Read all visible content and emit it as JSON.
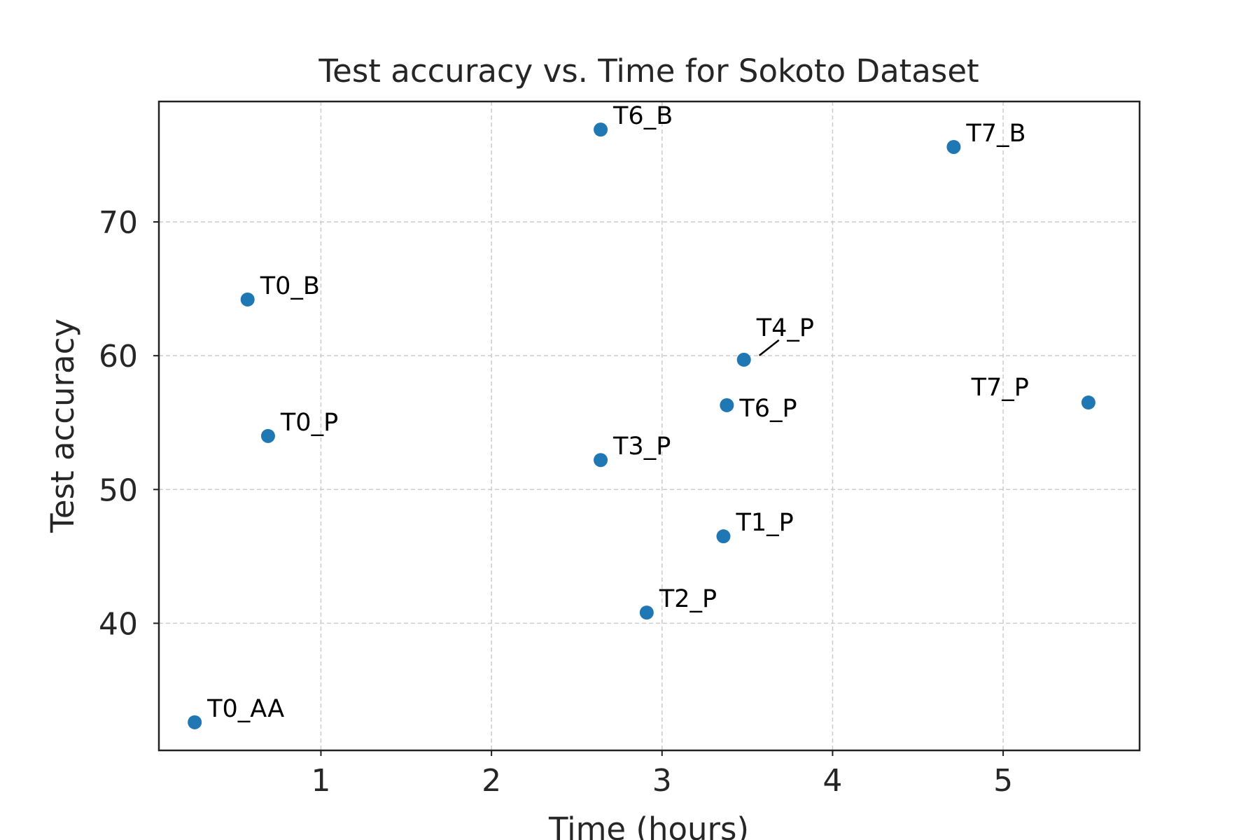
{
  "chart_data": {
    "type": "scatter",
    "title": "Test accuracy vs. Time for Sokoto Dataset",
    "xlabel": "Time (hours)",
    "ylabel": "Test accuracy",
    "xlim": [
      0.05,
      5.8
    ],
    "ylim": [
      30.5,
      79.0
    ],
    "xticks": [
      1,
      2,
      3,
      4,
      5
    ],
    "yticks": [
      40,
      50,
      60,
      70
    ],
    "grid": true,
    "marker_color": "#1f77b4",
    "points": [
      {
        "label": "T0_AA",
        "x": 0.26,
        "y": 32.6,
        "label_side": "right"
      },
      {
        "label": "T0_B",
        "x": 0.57,
        "y": 64.2,
        "label_side": "right"
      },
      {
        "label": "T0_P",
        "x": 0.69,
        "y": 54.0,
        "label_side": "right"
      },
      {
        "label": "T1_P",
        "x": 3.36,
        "y": 46.5,
        "label_side": "right"
      },
      {
        "label": "T2_P",
        "x": 2.91,
        "y": 40.8,
        "label_side": "right"
      },
      {
        "label": "T3_P",
        "x": 2.64,
        "y": 52.2,
        "label_side": "right"
      },
      {
        "label": "T4_P",
        "x": 3.48,
        "y": 59.7,
        "label_side": "above-leader"
      },
      {
        "label": "T6_B",
        "x": 2.64,
        "y": 76.9,
        "label_side": "right"
      },
      {
        "label": "T6_P",
        "x": 3.38,
        "y": 56.3,
        "label_side": "right-below"
      },
      {
        "label": "T7_B",
        "x": 4.71,
        "y": 75.6,
        "label_side": "right"
      },
      {
        "label": "T7_P",
        "x": 5.5,
        "y": 56.5,
        "label_side": "left"
      }
    ]
  }
}
